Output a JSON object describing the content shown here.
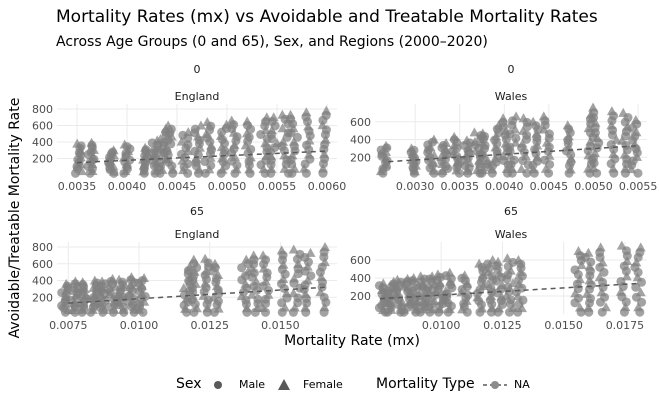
{
  "title": "Mortality Rates (mx) vs Avoidable and Treatable Mortality Rates",
  "subtitle": "Across Age Groups (0 and 65), Sex, and Regions (2000–2020)",
  "xlabel": "Mortality Rate (mx)",
  "ylabel": "Avoidable/Treatable Mortality Rate",
  "legend": {
    "sex_title": "Sex",
    "sex_items": [
      {
        "label": "Male",
        "shape": "circle"
      },
      {
        "label": "Female",
        "shape": "triangle"
      }
    ],
    "type_title": "Mortality Type",
    "type_items": [
      {
        "label": "NA"
      }
    ]
  },
  "colors": {
    "points": "#7f7f7f",
    "trend": "#595959",
    "grid": "#ebebeb",
    "text": "#4d4d4d"
  },
  "chart_data": [
    {
      "type": "scatter",
      "age": "0",
      "region": "England",
      "xlim": [
        0.0033,
        0.0061
      ],
      "ylim": [
        0,
        860
      ],
      "xticks": [
        0.0035,
        0.004,
        0.0045,
        0.005,
        0.0055,
        0.006
      ],
      "xtick_labels": [
        "0.0035",
        "0.0040",
        "0.0045",
        "0.0050",
        "0.0055",
        "0.0060"
      ],
      "yticks": [
        200,
        400,
        600,
        800
      ],
      "ytick_labels": [
        "200",
        "400",
        "600",
        "800"
      ],
      "clusters": [
        {
          "x": 0.00352,
          "ymin": 20,
          "ymax": 380
        },
        {
          "x": 0.00364,
          "ymin": 20,
          "ymax": 390
        },
        {
          "x": 0.00384,
          "ymin": 20,
          "ymax": 300
        },
        {
          "x": 0.004,
          "ymin": 20,
          "ymax": 370
        },
        {
          "x": 0.00418,
          "ymin": 20,
          "ymax": 330
        },
        {
          "x": 0.00428,
          "ymin": 20,
          "ymax": 420
        },
        {
          "x": 0.00436,
          "ymin": 20,
          "ymax": 560
        },
        {
          "x": 0.00443,
          "ymin": 20,
          "ymax": 600
        },
        {
          "x": 0.00458,
          "ymin": 20,
          "ymax": 520
        },
        {
          "x": 0.00471,
          "ymin": 20,
          "ymax": 600
        },
        {
          "x": 0.00481,
          "ymin": 20,
          "ymax": 640
        },
        {
          "x": 0.00496,
          "ymin": 20,
          "ymax": 610
        },
        {
          "x": 0.00507,
          "ymin": 20,
          "ymax": 660
        },
        {
          "x": 0.00522,
          "ymin": 20,
          "ymax": 650
        },
        {
          "x": 0.00537,
          "ymin": 20,
          "ymax": 700
        },
        {
          "x": 0.00547,
          "ymin": 20,
          "ymax": 700
        },
        {
          "x": 0.00558,
          "ymin": 20,
          "ymax": 730
        },
        {
          "x": 0.00567,
          "ymin": 20,
          "ymax": 730
        },
        {
          "x": 0.0058,
          "ymin": 20,
          "ymax": 760
        },
        {
          "x": 0.00596,
          "ymin": 20,
          "ymax": 780
        }
      ],
      "trend": [
        [
          0.0035,
          150
        ],
        [
          0.006,
          290
        ]
      ]
    },
    {
      "type": "scatter",
      "age": "0",
      "region": "Wales",
      "xlim": [
        0.00255,
        0.0056
      ],
      "ylim": [
        0,
        800
      ],
      "xticks": [
        0.003,
        0.0035,
        0.004,
        0.0045,
        0.005,
        0.0055
      ],
      "xtick_labels": [
        "0.0030",
        "0.0035",
        "0.0040",
        "0.0045",
        "0.0050",
        "0.0055"
      ],
      "yticks": [
        200,
        400,
        600
      ],
      "ytick_labels": [
        "200",
        "400",
        "600"
      ],
      "clusters": [
        {
          "x": 0.00265,
          "ymin": 20,
          "ymax": 330
        },
        {
          "x": 0.00298,
          "ymin": 20,
          "ymax": 300
        },
        {
          "x": 0.00318,
          "ymin": 20,
          "ymax": 400
        },
        {
          "x": 0.00333,
          "ymin": 20,
          "ymax": 360
        },
        {
          "x": 0.00346,
          "ymin": 20,
          "ymax": 430
        },
        {
          "x": 0.00358,
          "ymin": 20,
          "ymax": 390
        },
        {
          "x": 0.0037,
          "ymin": 20,
          "ymax": 480
        },
        {
          "x": 0.00378,
          "ymin": 20,
          "ymax": 470
        },
        {
          "x": 0.0039,
          "ymin": 20,
          "ymax": 560
        },
        {
          "x": 0.00402,
          "ymin": 20,
          "ymax": 640
        },
        {
          "x": 0.0041,
          "ymin": 20,
          "ymax": 660
        },
        {
          "x": 0.00423,
          "ymin": 20,
          "ymax": 640
        },
        {
          "x": 0.00434,
          "ymin": 20,
          "ymax": 600
        },
        {
          "x": 0.00448,
          "ymin": 20,
          "ymax": 660
        },
        {
          "x": 0.00472,
          "ymin": 20,
          "ymax": 560
        },
        {
          "x": 0.00496,
          "ymin": 20,
          "ymax": 680
        },
        {
          "x": 0.00503,
          "ymin": 20,
          "ymax": 760
        },
        {
          "x": 0.00523,
          "ymin": 20,
          "ymax": 720
        },
        {
          "x": 0.00535,
          "ymin": 20,
          "ymax": 700
        },
        {
          "x": 0.00546,
          "ymin": 20,
          "ymax": 620
        }
      ],
      "trend": [
        [
          0.0027,
          150
        ],
        [
          0.0055,
          330
        ]
      ]
    },
    {
      "type": "scatter",
      "age": "65",
      "region": "England",
      "xlim": [
        0.0071,
        0.017
      ],
      "ylim": [
        0,
        860
      ],
      "xticks": [
        0.0075,
        0.01,
        0.0125,
        0.015
      ],
      "xtick_labels": [
        "0.0075",
        "0.0100",
        "0.0125",
        "0.0150"
      ],
      "yticks": [
        200,
        400,
        600,
        800
      ],
      "ytick_labels": [
        "200",
        "400",
        "600",
        "800"
      ],
      "clusters": [
        {
          "x": 0.00738,
          "ymin": 20,
          "ymax": 360
        },
        {
          "x": 0.00772,
          "ymin": 20,
          "ymax": 390
        },
        {
          "x": 0.00806,
          "ymin": 20,
          "ymax": 380
        },
        {
          "x": 0.0084,
          "ymin": 20,
          "ymax": 400
        },
        {
          "x": 0.00874,
          "ymin": 20,
          "ymax": 390
        },
        {
          "x": 0.00906,
          "ymin": 20,
          "ymax": 420
        },
        {
          "x": 0.00938,
          "ymin": 20,
          "ymax": 410
        },
        {
          "x": 0.00972,
          "ymin": 20,
          "ymax": 440
        },
        {
          "x": 0.0101,
          "ymin": 20,
          "ymax": 430
        },
        {
          "x": 0.0117,
          "ymin": 20,
          "ymax": 560
        },
        {
          "x": 0.012,
          "ymin": 20,
          "ymax": 650
        },
        {
          "x": 0.01236,
          "ymin": 20,
          "ymax": 660
        },
        {
          "x": 0.0127,
          "ymin": 20,
          "ymax": 600
        },
        {
          "x": 0.01375,
          "ymin": 20,
          "ymax": 650
        },
        {
          "x": 0.0141,
          "ymin": 20,
          "ymax": 700
        },
        {
          "x": 0.0145,
          "ymin": 20,
          "ymax": 700
        },
        {
          "x": 0.01512,
          "ymin": 20,
          "ymax": 760
        },
        {
          "x": 0.01558,
          "ymin": 20,
          "ymax": 770
        },
        {
          "x": 0.01596,
          "ymin": 20,
          "ymax": 730
        },
        {
          "x": 0.0165,
          "ymin": 20,
          "ymax": 800
        }
      ],
      "trend": [
        [
          0.0075,
          130
        ],
        [
          0.0166,
          320
        ]
      ]
    },
    {
      "type": "scatter",
      "age": "65",
      "region": "Wales",
      "xlim": [
        0.0073,
        0.0184
      ],
      "ylim": [
        0,
        800
      ],
      "xticks": [
        0.01,
        0.0125,
        0.015,
        0.0175
      ],
      "xtick_labels": [
        "0.0100",
        "0.0125",
        "0.0150",
        "0.0175"
      ],
      "yticks": [
        200,
        400,
        600
      ],
      "ytick_labels": [
        "200",
        "400",
        "600"
      ],
      "clusters": [
        {
          "x": 0.00762,
          "ymin": 20,
          "ymax": 340
        },
        {
          "x": 0.00796,
          "ymin": 20,
          "ymax": 360
        },
        {
          "x": 0.0083,
          "ymin": 20,
          "ymax": 380
        },
        {
          "x": 0.00862,
          "ymin": 20,
          "ymax": 390
        },
        {
          "x": 0.00896,
          "ymin": 20,
          "ymax": 400
        },
        {
          "x": 0.00928,
          "ymin": 20,
          "ymax": 420
        },
        {
          "x": 0.0096,
          "ymin": 20,
          "ymax": 420
        },
        {
          "x": 0.00994,
          "ymin": 20,
          "ymax": 440
        },
        {
          "x": 0.01032,
          "ymin": 20,
          "ymax": 460
        },
        {
          "x": 0.01096,
          "ymin": 20,
          "ymax": 430
        },
        {
          "x": 0.0116,
          "ymin": 20,
          "ymax": 560
        },
        {
          "x": 0.012,
          "ymin": 20,
          "ymax": 600
        },
        {
          "x": 0.0124,
          "ymin": 20,
          "ymax": 580
        },
        {
          "x": 0.0128,
          "ymin": 20,
          "ymax": 620
        },
        {
          "x": 0.0132,
          "ymin": 20,
          "ymax": 600
        },
        {
          "x": 0.0156,
          "ymin": 20,
          "ymax": 700
        },
        {
          "x": 0.016,
          "ymin": 20,
          "ymax": 680
        },
        {
          "x": 0.0166,
          "ymin": 20,
          "ymax": 740
        },
        {
          "x": 0.01746,
          "ymin": 20,
          "ymax": 760
        },
        {
          "x": 0.01804,
          "ymin": 20,
          "ymax": 740
        }
      ],
      "trend": [
        [
          0.0075,
          170
        ],
        [
          0.0181,
          340
        ]
      ]
    }
  ]
}
